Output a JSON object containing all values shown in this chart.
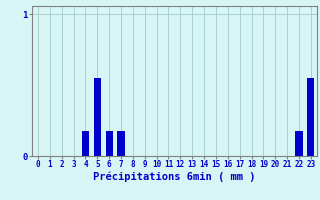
{
  "xlabel": "Précipitations 6min ( mm )",
  "hours": [
    0,
    1,
    2,
    3,
    4,
    5,
    6,
    7,
    8,
    9,
    10,
    11,
    12,
    13,
    14,
    15,
    16,
    17,
    18,
    19,
    20,
    21,
    22,
    23
  ],
  "values": [
    0,
    0,
    0,
    0,
    0.18,
    0.55,
    0.18,
    0.18,
    0,
    0,
    0,
    0,
    0,
    0,
    0,
    0,
    0,
    0,
    0,
    0,
    0,
    0,
    0.18,
    0.55
  ],
  "bar_color": "#0000cc",
  "background_color": "#d8f5f5",
  "grid_color": "#aacfcf",
  "axis_color": "#808080",
  "text_color": "#0000cc",
  "ylim_max": 1.0,
  "xlabel_fontsize": 7.5,
  "tick_fontsize": 5.5
}
